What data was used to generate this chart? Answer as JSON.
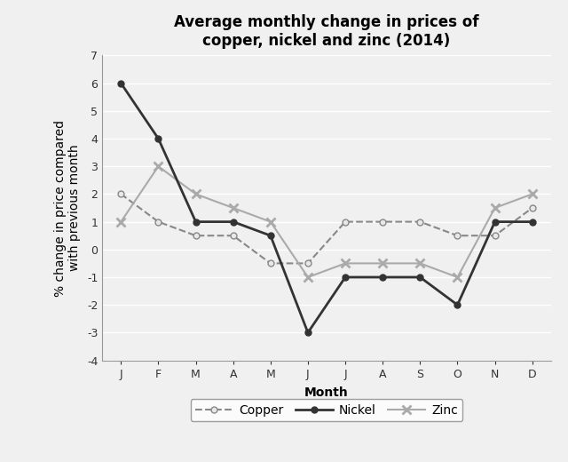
{
  "title": "Average monthly change in prices of\ncopper, nickel and zinc (2014)",
  "xlabel": "Month",
  "ylabel": "% change in price compared\nwith previous month",
  "months": [
    "J",
    "F",
    "M",
    "A",
    "M",
    "J",
    "J",
    "A",
    "S",
    "O",
    "N",
    "D"
  ],
  "copper": [
    2,
    1,
    0.5,
    0.5,
    -0.5,
    -0.5,
    1,
    1,
    1,
    0.5,
    0.5,
    1.5
  ],
  "nickel": [
    6,
    4,
    1,
    1,
    0.5,
    -3,
    -1,
    -1,
    -1,
    -2,
    1,
    1
  ],
  "zinc": [
    1,
    3,
    2,
    1.5,
    1,
    -1,
    -0.5,
    -0.5,
    -0.5,
    -1,
    1.5,
    2
  ],
  "ylim": [
    -4,
    7
  ],
  "yticks": [
    -4,
    -3,
    -2,
    -1,
    0,
    1,
    2,
    3,
    4,
    5,
    6,
    7
  ],
  "background_color": "#f0f0f0",
  "plot_bg_color": "#f0f0f0",
  "grid_color": "#ffffff",
  "copper_color": "#888888",
  "nickel_color": "#333333",
  "zinc_color": "#aaaaaa",
  "title_fontsize": 12,
  "label_fontsize": 10,
  "tick_fontsize": 9,
  "legend_fontsize": 10
}
